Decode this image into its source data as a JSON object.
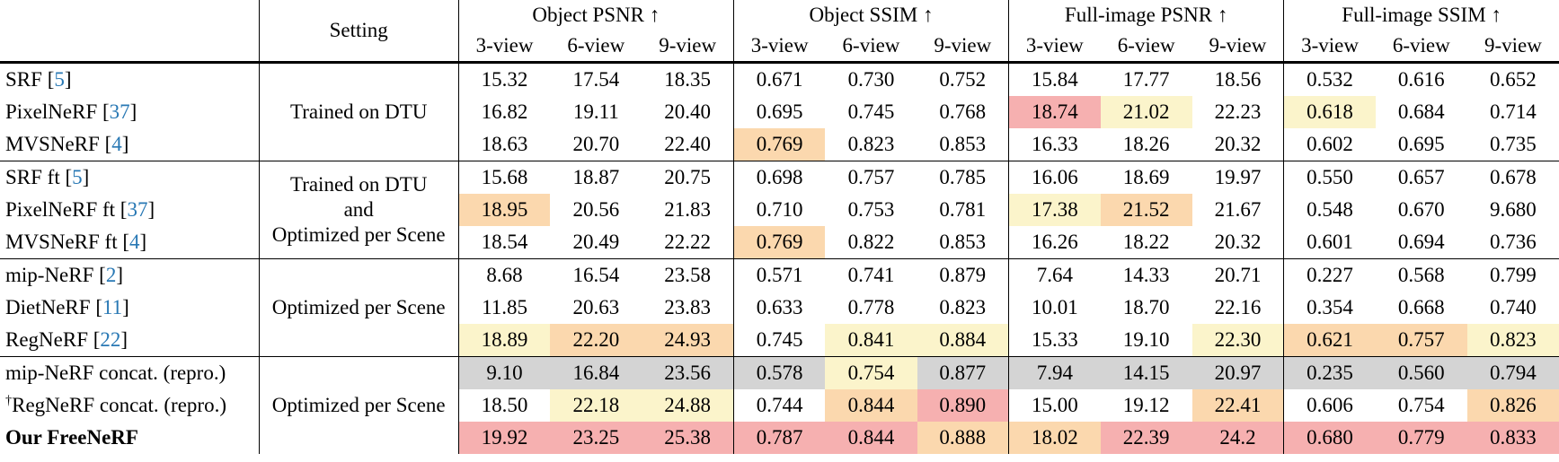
{
  "colors": {
    "pink": "#f6b0b0",
    "yellow": "#fbf4cb",
    "orange": "#fbd8ae",
    "gray": "#d4d4d4",
    "cite_link": "#2878b4"
  },
  "header": {
    "setting": "Setting",
    "groups": [
      "Object PSNR ↑",
      "Object SSIM ↑",
      "Full-image PSNR ↑",
      "Full-image SSIM ↑"
    ],
    "views": [
      "3-view",
      "6-view",
      "9-view"
    ]
  },
  "settings": [
    {
      "span": 3,
      "lines": [
        "Trained on DTU"
      ]
    },
    {
      "span": 3,
      "lines": [
        "Trained on DTU",
        "and",
        "Optimized per Scene"
      ]
    },
    {
      "span": 3,
      "lines": [
        "Optimized per Scene"
      ]
    },
    {
      "span": 3,
      "lines": [
        "Optimized per Scene"
      ]
    }
  ],
  "rows": [
    {
      "method": "SRF",
      "cite": "5",
      "prefix": "",
      "bold": false,
      "values": [
        "15.32",
        "17.54",
        "18.35",
        "0.671",
        "0.730",
        "0.752",
        "15.84",
        "17.77",
        "18.56",
        "0.532",
        "0.616",
        "0.652"
      ],
      "hl": [
        "",
        "",
        "",
        "",
        "",
        "",
        "",
        "",
        "",
        "",
        "",
        ""
      ]
    },
    {
      "method": "PixelNeRF",
      "cite": "37",
      "prefix": "",
      "bold": false,
      "values": [
        "16.82",
        "19.11",
        "20.40",
        "0.695",
        "0.745",
        "0.768",
        "18.74",
        "21.02",
        "22.23",
        "0.618",
        "0.684",
        "0.714"
      ],
      "hl": [
        "",
        "",
        "",
        "",
        "",
        "",
        "pink",
        "yellow",
        "",
        "yellow",
        "",
        ""
      ]
    },
    {
      "method": "MVSNeRF",
      "cite": "4",
      "prefix": "",
      "bold": false,
      "values": [
        "18.63",
        "20.70",
        "22.40",
        "0.769",
        "0.823",
        "0.853",
        "16.33",
        "18.26",
        "20.32",
        "0.602",
        "0.695",
        "0.735"
      ],
      "hl": [
        "",
        "",
        "",
        "orange",
        "",
        "",
        "",
        "",
        "",
        "",
        "",
        ""
      ]
    },
    {
      "method": "SRF ft",
      "cite": "5",
      "prefix": "",
      "bold": false,
      "values": [
        "15.68",
        "18.87",
        "20.75",
        "0.698",
        "0.757",
        "0.785",
        "16.06",
        "18.69",
        "19.97",
        "0.550",
        "0.657",
        "0.678"
      ],
      "hl": [
        "",
        "",
        "",
        "",
        "",
        "",
        "",
        "",
        "",
        "",
        "",
        ""
      ]
    },
    {
      "method": "PixelNeRF ft",
      "cite": "37",
      "prefix": "",
      "bold": false,
      "values": [
        "18.95",
        "20.56",
        "21.83",
        "0.710",
        "0.753",
        "0.781",
        "17.38",
        "21.52",
        "21.67",
        "0.548",
        "0.670",
        "9.680"
      ],
      "hl": [
        "orange",
        "",
        "",
        "",
        "",
        "",
        "yellow",
        "orange",
        "",
        "",
        "",
        ""
      ]
    },
    {
      "method": "MVSNeRF ft",
      "cite": "4",
      "prefix": "",
      "bold": false,
      "values": [
        "18.54",
        "20.49",
        "22.22",
        "0.769",
        "0.822",
        "0.853",
        "16.26",
        "18.22",
        "20.32",
        "0.601",
        "0.694",
        "0.736"
      ],
      "hl": [
        "",
        "",
        "",
        "orange",
        "",
        "",
        "",
        "",
        "",
        "",
        "",
        ""
      ]
    },
    {
      "method": "mip-NeRF",
      "cite": "2",
      "prefix": "",
      "bold": false,
      "values": [
        "8.68",
        "16.54",
        "23.58",
        "0.571",
        "0.741",
        "0.879",
        "7.64",
        "14.33",
        "20.71",
        "0.227",
        "0.568",
        "0.799"
      ],
      "hl": [
        "",
        "",
        "",
        "",
        "",
        "",
        "",
        "",
        "",
        "",
        "",
        ""
      ]
    },
    {
      "method": "DietNeRF",
      "cite": "11",
      "prefix": "",
      "bold": false,
      "values": [
        "11.85",
        "20.63",
        "23.83",
        "0.633",
        "0.778",
        "0.823",
        "10.01",
        "18.70",
        "22.16",
        "0.354",
        "0.668",
        "0.740"
      ],
      "hl": [
        "",
        "",
        "",
        "",
        "",
        "",
        "",
        "",
        "",
        "",
        "",
        ""
      ]
    },
    {
      "method": "RegNeRF",
      "cite": "22",
      "prefix": "",
      "bold": false,
      "values": [
        "18.89",
        "22.20",
        "24.93",
        "0.745",
        "0.841",
        "0.884",
        "15.33",
        "19.10",
        "22.30",
        "0.621",
        "0.757",
        "0.823"
      ],
      "hl": [
        "yellow",
        "orange",
        "orange",
        "",
        "yellow",
        "yellow",
        "",
        "",
        "yellow",
        "orange",
        "orange",
        "yellow"
      ]
    },
    {
      "method": "mip-NeRF concat. (repro.)",
      "cite": "",
      "prefix": "",
      "bold": false,
      "values": [
        "9.10",
        "16.84",
        "23.56",
        "0.578",
        "0.754",
        "0.877",
        "7.94",
        "14.15",
        "20.97",
        "0.235",
        "0.560",
        "0.794"
      ],
      "hl": [
        "gray",
        "gray",
        "gray",
        "gray",
        "yellow",
        "gray",
        "gray",
        "gray",
        "gray",
        "gray",
        "gray",
        "gray"
      ]
    },
    {
      "method": "RegNeRF concat. (repro.)",
      "cite": "",
      "prefix": "†",
      "bold": false,
      "values": [
        "18.50",
        "22.18",
        "24.88",
        "0.744",
        "0.844",
        "0.890",
        "15.00",
        "19.12",
        "22.41",
        "0.606",
        "0.754",
        "0.826"
      ],
      "hl": [
        "",
        "yellow",
        "yellow",
        "",
        "orange",
        "pink",
        "",
        "",
        "orange",
        "",
        "",
        "orange"
      ]
    },
    {
      "method": "Our FreeNeRF",
      "cite": "",
      "prefix": "",
      "bold": true,
      "values": [
        "19.92",
        "23.25",
        "25.38",
        "0.787",
        "0.844",
        "0.888",
        "18.02",
        "22.39",
        "24.2",
        "0.680",
        "0.779",
        "0.833"
      ],
      "hl": [
        "pink",
        "pink",
        "pink",
        "pink",
        "pink",
        "orange",
        "orange",
        "pink",
        "pink",
        "pink",
        "pink",
        "pink"
      ]
    }
  ]
}
